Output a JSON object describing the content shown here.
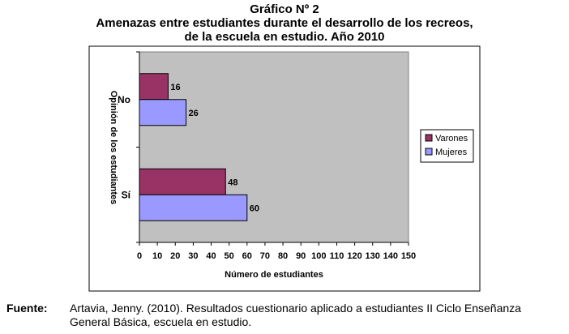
{
  "header": {
    "title_line1": "Gráfico Nº 2",
    "title_line2": "Amenazas entre estudiantes durante el desarrollo de los recreos,",
    "title_line3": "de la escuela en estudio. Año 2010"
  },
  "chart_data": {
    "type": "bar",
    "orientation": "horizontal",
    "categories": [
      "No",
      "Sí"
    ],
    "series": [
      {
        "name": "Varones",
        "values": [
          16,
          48
        ],
        "color": "#993366"
      },
      {
        "name": "Mujeres",
        "values": [
          26,
          60
        ],
        "color": "#9999ff"
      }
    ],
    "xlabel": "Número de estudiantes",
    "ylabel": "Opinión de los estudiantes",
    "xlim": [
      0,
      150
    ],
    "xticks": [
      "0",
      "10",
      "20",
      "30",
      "40",
      "50",
      "60",
      "70",
      "80",
      "90",
      "100",
      "110",
      "120",
      "130",
      "140",
      "150"
    ],
    "data_labels": [
      "16",
      "26",
      "48",
      "60"
    ],
    "plot_background": "#c0c0c0",
    "grid": false,
    "legend_position": "right"
  },
  "footer": {
    "label": "Fuente:",
    "text": "Artavia, Jenny. (2010). Resultados cuestionario aplicado a estudiantes II Ciclo Enseñanza General Básica, escuela en estudio."
  }
}
